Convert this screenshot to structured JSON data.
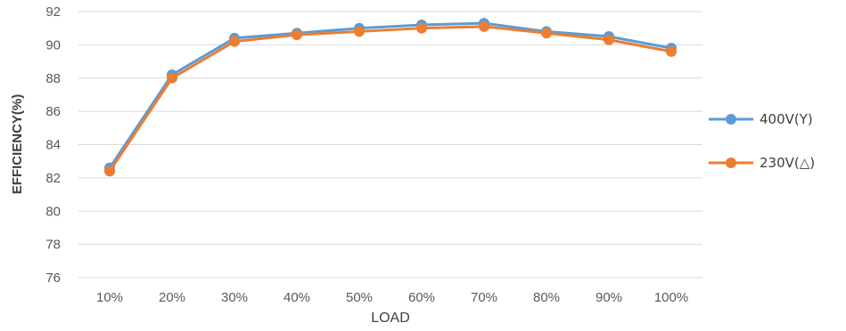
{
  "chart_data": {
    "type": "line",
    "xlabel": "LOAD",
    "ylabel": "EFFICIENCY(%)",
    "categories": [
      "10%",
      "20%",
      "30%",
      "40%",
      "50%",
      "60%",
      "70%",
      "80%",
      "90%",
      "100%"
    ],
    "ylim": [
      76,
      92
    ],
    "yticks": [
      76,
      78,
      80,
      82,
      84,
      86,
      88,
      90,
      92
    ],
    "grid": true,
    "legend_position": "right",
    "series": [
      {
        "name": "400V(Y)",
        "color": "#5B9BD5",
        "values": [
          82.6,
          88.2,
          90.4,
          90.7,
          91.0,
          91.2,
          91.3,
          90.8,
          90.5,
          89.8
        ]
      },
      {
        "name": "230V(△)",
        "color": "#ED7D31",
        "values": [
          82.4,
          88.0,
          90.2,
          90.6,
          90.8,
          91.0,
          91.1,
          90.7,
          90.3,
          89.6
        ]
      }
    ]
  }
}
